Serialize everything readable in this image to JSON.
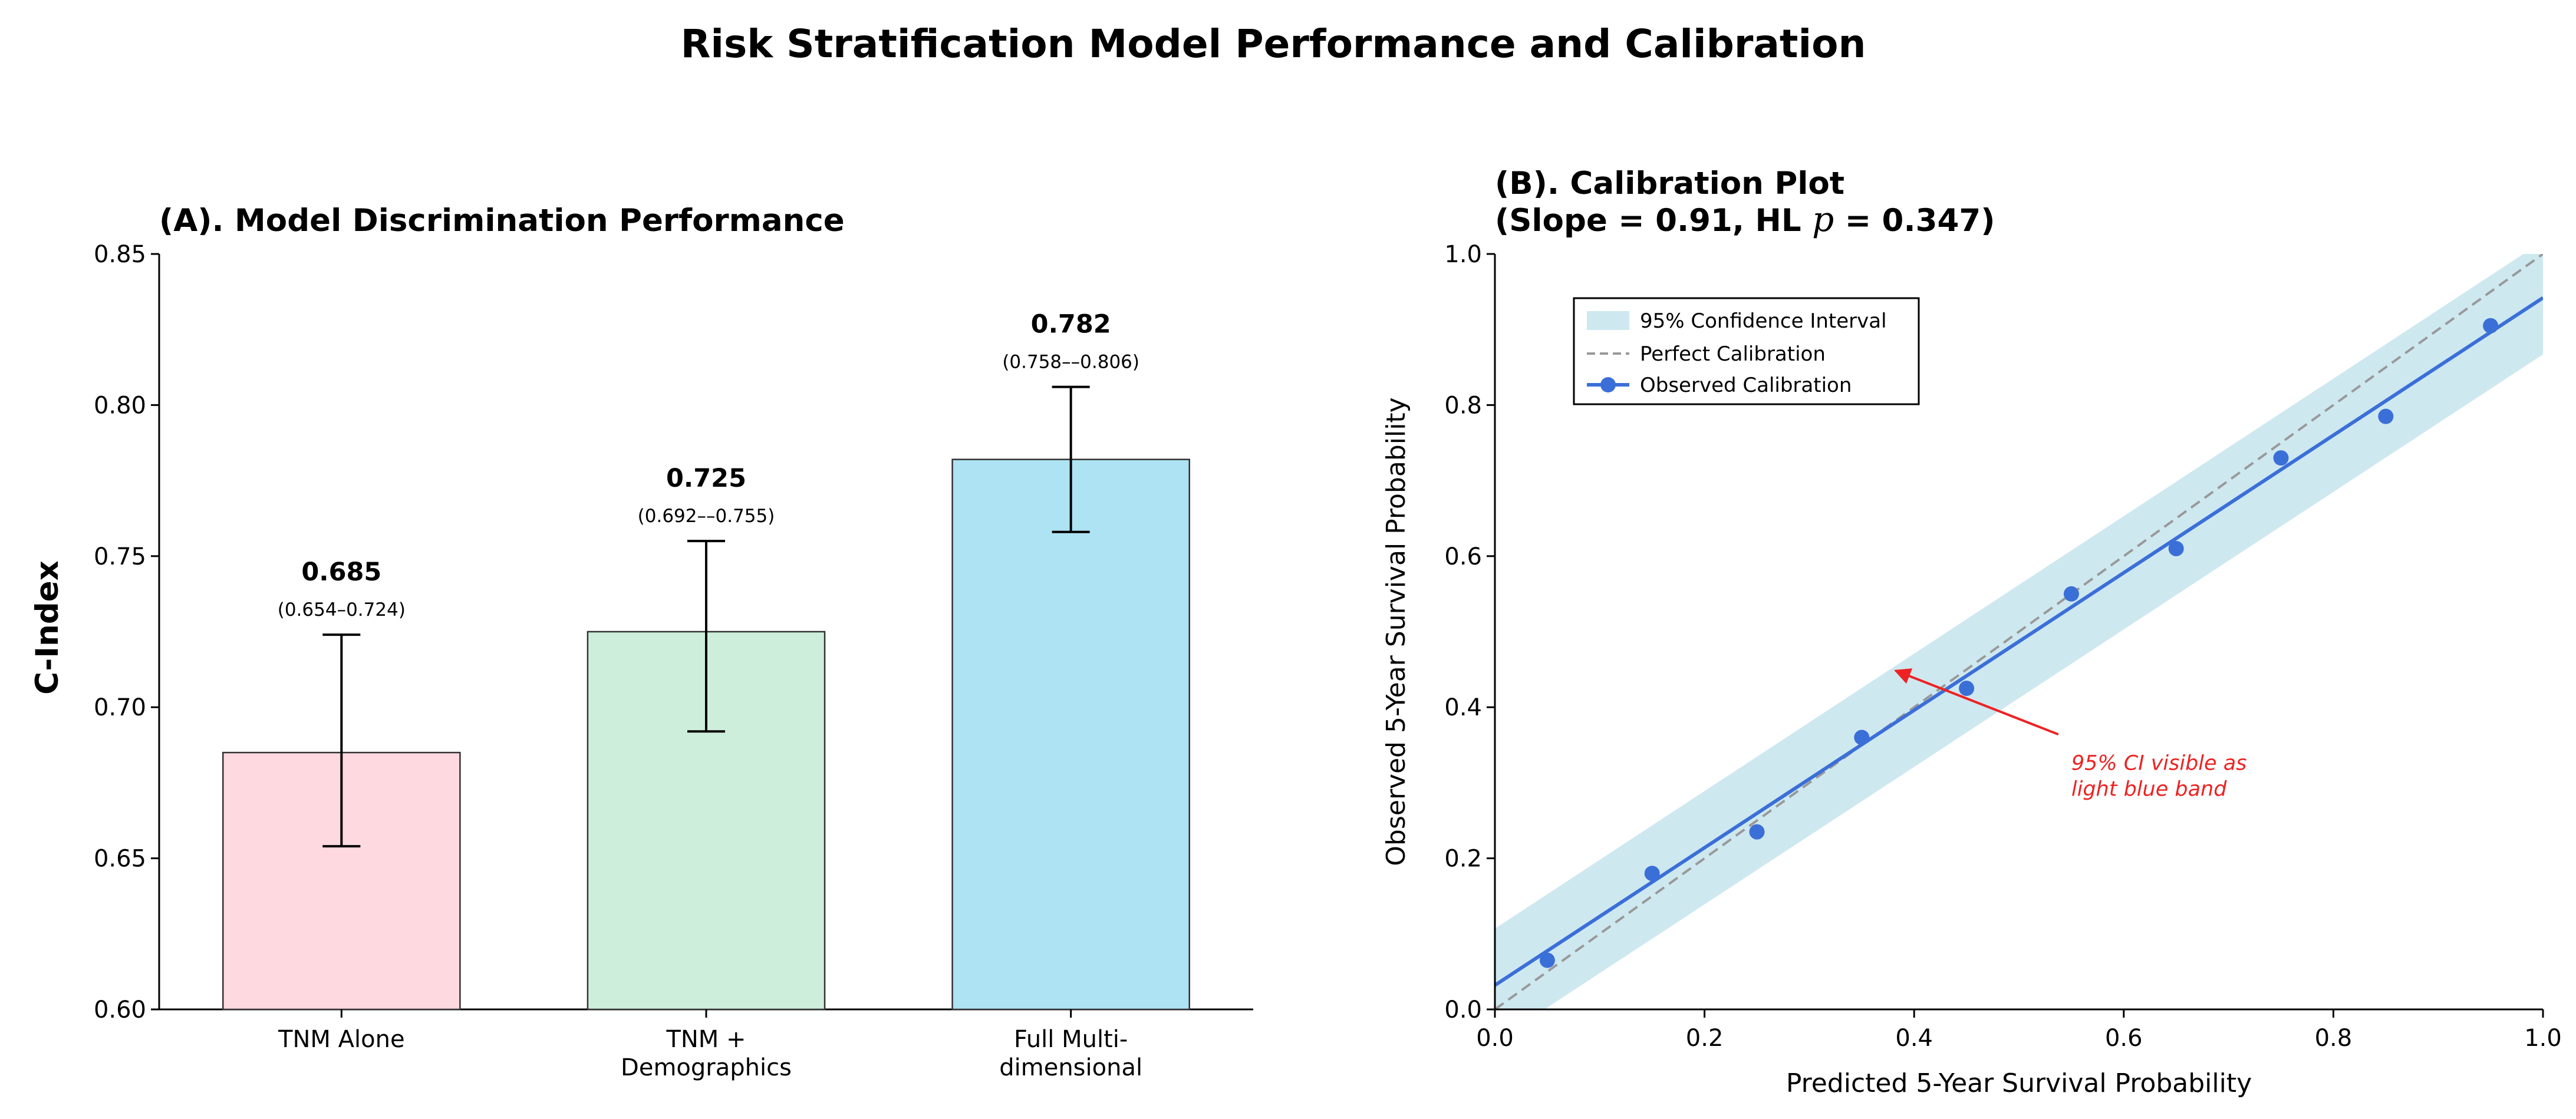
{
  "suptitle": "Risk Stratification Model Performance and Calibration",
  "chart_data": [
    {
      "type": "bar",
      "title": "(A). Model Discrimination Performance",
      "xlabel": "",
      "ylabel": "C-Index",
      "ylim": [
        0.6,
        0.85
      ],
      "yticks": [
        "0.60",
        "0.65",
        "0.70",
        "0.75",
        "0.80",
        "0.85"
      ],
      "categories": [
        [
          "TNM Alone"
        ],
        [
          "TNM +",
          "Demographics"
        ],
        [
          "Full Multi-",
          "dimensional"
        ]
      ],
      "values": [
        0.685,
        0.725,
        0.782
      ],
      "value_labels": [
        "0.685",
        "0.725",
        "0.782"
      ],
      "ci_low": [
        0.654,
        0.692,
        0.758
      ],
      "ci_high": [
        0.724,
        0.755,
        0.806
      ],
      "ci_labels": [
        "(0.654–0.724)",
        "(0.692––0.755)",
        "(0.758––0.806)"
      ],
      "colors": [
        "#ffd9e0",
        "#cdeedb",
        "#ade3f2"
      ]
    },
    {
      "type": "line",
      "title_line1": "(B). Calibration Plot",
      "title_line2_prefix": "(Slope = 0.91, HL ",
      "title_line2_p": "p",
      "title_line2_suffix": " = 0.347)",
      "xlabel": "Predicted 5-Year Survival Probability",
      "ylabel": "Observed 5-Year Survival Probability",
      "xlim": [
        0.0,
        1.0
      ],
      "ylim": [
        0.0,
        1.0
      ],
      "xticks": [
        "0.0",
        "0.2",
        "0.4",
        "0.6",
        "0.8",
        "1.0"
      ],
      "yticks": [
        "0.0",
        "0.2",
        "0.4",
        "0.6",
        "0.8",
        "1.0"
      ],
      "points": {
        "x": [
          0.05,
          0.15,
          0.25,
          0.35,
          0.45,
          0.55,
          0.65,
          0.75,
          0.85,
          0.95
        ],
        "y": [
          0.065,
          0.18,
          0.235,
          0.36,
          0.425,
          0.55,
          0.61,
          0.73,
          0.785,
          0.905
        ]
      },
      "fit_line": {
        "intercept": 0.032,
        "slope": 0.91
      },
      "ci_band_halfwidth": 0.075,
      "legend": [
        "95% Confidence Interval",
        "Perfect Calibration",
        "Observed Calibration"
      ],
      "legend_loc": "upper-left",
      "annotation": {
        "lines": [
          "95% CI visible as",
          "light blue band"
        ],
        "xy": [
          0.38,
          0.45
        ],
        "xytext": [
          0.55,
          0.35
        ]
      },
      "colors": {
        "band": "#add8e6",
        "fit": "#3b6fd8",
        "diag": "#999999",
        "annotation": "#ee2222"
      }
    }
  ]
}
